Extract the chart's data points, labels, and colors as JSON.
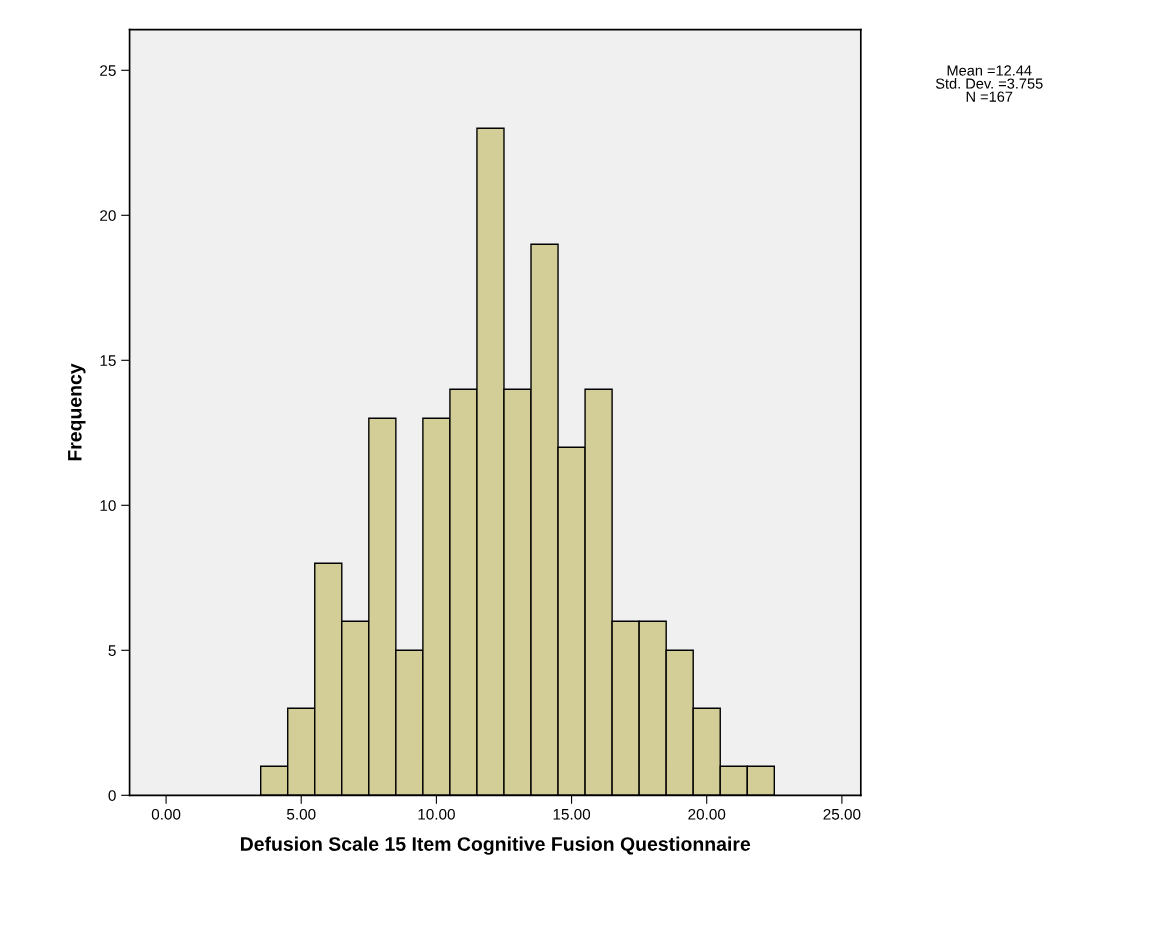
{
  "chart_data": {
    "type": "histogram",
    "xlabel": "Defusion Scale 15 Item Cognitive Fusion Questionnaire",
    "ylabel": "Frequency",
    "bins": [
      3.5,
      4.5,
      5.5,
      6.5,
      7.5,
      8.5,
      9.5,
      10.5,
      11.5,
      12.5,
      13.5,
      14.5,
      15.5,
      16.5,
      17.5,
      18.5,
      19.5,
      20.5,
      21.5,
      22.5
    ],
    "values": [
      1,
      3,
      8,
      6,
      13,
      5,
      13,
      14,
      23,
      14,
      19,
      12,
      14,
      6,
      6,
      5,
      3,
      1,
      1
    ],
    "color": "#d3ce97",
    "xlim": [
      -1.35,
      25.7
    ],
    "ylim": [
      0,
      26.4
    ],
    "xticks": [
      {
        "value": 0,
        "label": "0.00"
      },
      {
        "value": 5,
        "label": "5.00"
      },
      {
        "value": 10,
        "label": "10.00"
      },
      {
        "value": 15,
        "label": "15.00"
      },
      {
        "value": 20,
        "label": "20.00"
      },
      {
        "value": 25,
        "label": "25.00"
      }
    ],
    "yticks": [
      0,
      5,
      10,
      15,
      20,
      25
    ],
    "grid": false,
    "annotations": [
      "Mean =12.44\nStd. Dev. =3.755\nN =167"
    ]
  }
}
